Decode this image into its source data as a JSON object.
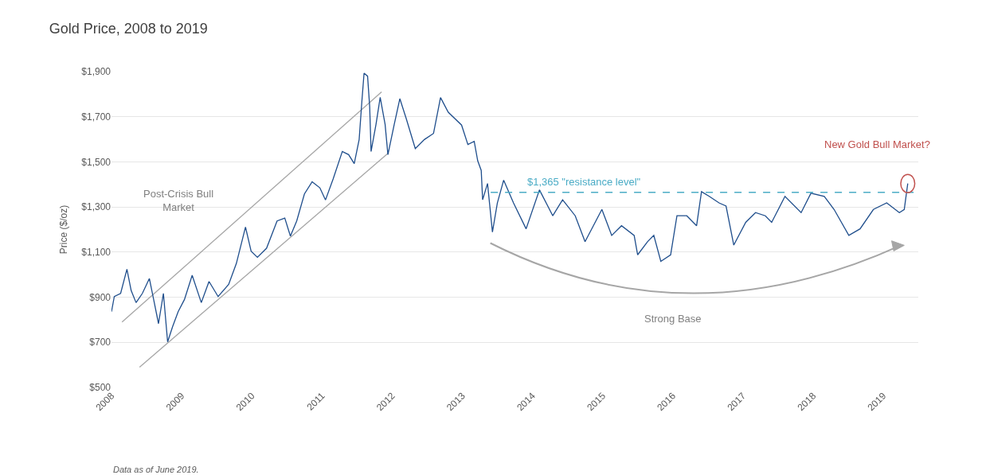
{
  "chart_data": {
    "type": "line",
    "title": "Gold Price, 2008 to 2019",
    "ylabel": "Price ($/oz)",
    "x": [
      2008.0,
      2008.04,
      2008.13,
      2008.22,
      2008.28,
      2008.35,
      2008.44,
      2008.54,
      2008.61,
      2008.67,
      2008.74,
      2008.8,
      2008.87,
      2008.95,
      2009.04,
      2009.15,
      2009.28,
      2009.39,
      2009.52,
      2009.67,
      2009.78,
      2009.91,
      2009.99,
      2010.08,
      2010.21,
      2010.36,
      2010.47,
      2010.55,
      2010.64,
      2010.75,
      2010.86,
      2010.97,
      2011.05,
      2011.16,
      2011.29,
      2011.38,
      2011.46,
      2011.53,
      2011.57,
      2011.6,
      2011.65,
      2011.68,
      2011.7,
      2011.77,
      2011.83,
      2011.9,
      2011.94,
      2012.03,
      2012.11,
      2012.2,
      2012.33,
      2012.46,
      2012.59,
      2012.69,
      2012.8,
      2012.99,
      2013.08,
      2013.17,
      2013.22,
      2013.27,
      2013.29,
      2013.36,
      2013.43,
      2013.5,
      2013.59,
      2013.73,
      2013.91,
      2014.1,
      2014.29,
      2014.43,
      2014.61,
      2014.75,
      2014.99,
      2015.13,
      2015.27,
      2015.45,
      2015.5,
      2015.64,
      2015.73,
      2015.83,
      2015.97,
      2016.06,
      2016.2,
      2016.34,
      2016.41,
      2016.52,
      2016.66,
      2016.76,
      2016.87,
      2017.04,
      2017.18,
      2017.32,
      2017.41,
      2017.6,
      2017.83,
      2017.97,
      2018.16,
      2018.3,
      2018.51,
      2018.67,
      2018.86,
      2019.05,
      2019.23,
      2019.3,
      2019.35
    ],
    "series": [
      {
        "type": "line",
        "color": "#a6a6a6",
        "x": [
          2008.15,
          2011.85
        ],
        "values": [
          790,
          1810
        ]
      },
      {
        "type": "line",
        "color": "#a6a6a6",
        "x": [
          2008.4,
          2011.95
        ],
        "values": [
          590,
          1540
        ]
      },
      {
        "color": "#1f4e8c",
        "values": [
          836,
          903,
          917,
          1024,
          930,
          876,
          917,
          983,
          876,
          783,
          917,
          702,
          769,
          836,
          890,
          997,
          876,
          970,
          903,
          957,
          1050,
          1211,
          1104,
          1077,
          1117,
          1238,
          1251,
          1171,
          1238,
          1358,
          1412,
          1385,
          1331,
          1425,
          1546,
          1532,
          1492,
          1599,
          1773,
          1893,
          1880,
          1746,
          1546,
          1666,
          1786,
          1666,
          1532,
          1666,
          1780,
          1693,
          1559,
          1599,
          1626,
          1785,
          1720,
          1663,
          1577,
          1591,
          1505,
          1462,
          1332,
          1404,
          1189,
          1318,
          1419,
          1318,
          1203,
          1376,
          1261,
          1332,
          1261,
          1146,
          1289,
          1174,
          1217,
          1174,
          1088,
          1146,
          1174,
          1059,
          1088,
          1261,
          1261,
          1217,
          1368,
          1347,
          1318,
          1304,
          1131,
          1232,
          1275,
          1261,
          1232,
          1347,
          1275,
          1361,
          1347,
          1289,
          1174,
          1203,
          1289,
          1318,
          1275,
          1289,
          1404
        ]
      }
    ],
    "xlim": [
      2008,
      2019.5
    ],
    "xticks": [
      2008,
      2009,
      2010,
      2011,
      2012,
      2013,
      2014,
      2015,
      2016,
      2017,
      2018,
      2019
    ],
    "ylim": [
      500,
      1900
    ],
    "yticks": [
      {
        "value": 500,
        "label": "$500"
      },
      {
        "value": 700,
        "label": "$700"
      },
      {
        "value": 900,
        "label": "$900"
      },
      {
        "value": 1100,
        "label": "$1,100"
      },
      {
        "value": 1300,
        "label": "$1,300"
      },
      {
        "value": 1500,
        "label": "$1,500"
      },
      {
        "value": 1700,
        "label": "$1,700"
      },
      {
        "value": 1900,
        "label": "$1,900"
      }
    ],
    "grid": "y",
    "line_style": "solid",
    "marker": "none",
    "ref_lines": [
      {
        "axis": "y",
        "value": 1365,
        "label": "$1,365 \"resistance level\"",
        "color": "#4bacc6",
        "line_style": "dashed"
      }
    ],
    "annotations": [
      "Post-Crisis Bull\nMarket",
      "Strong Base",
      "New Gold Bull Market?",
      "Data as of June 2019."
    ]
  }
}
